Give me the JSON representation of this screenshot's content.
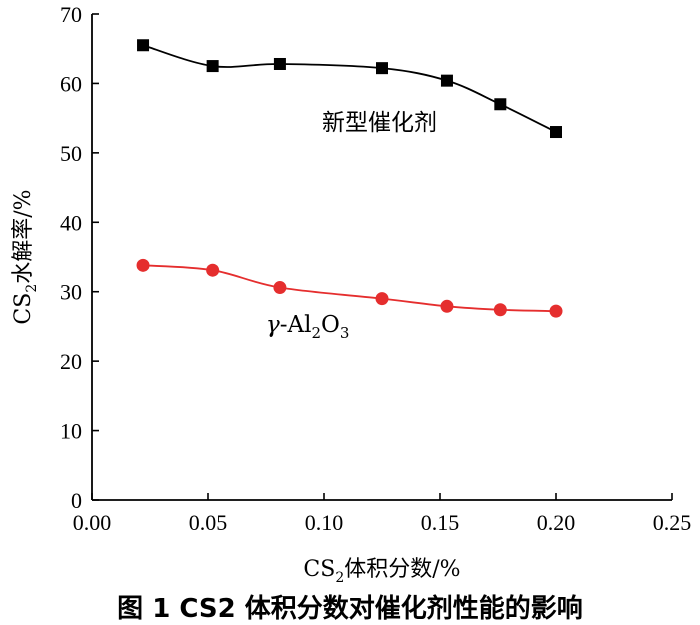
{
  "chart_data": {
    "type": "line",
    "title": "",
    "xlabel": {
      "main": "CS",
      "sub": "2",
      "rest": "体积分数/%"
    },
    "ylabel": {
      "main": "CS",
      "sub": "2",
      "rest": "水解率/%"
    },
    "xlim": [
      0.0,
      0.25
    ],
    "ylim": [
      0,
      70
    ],
    "x_ticks": [
      "0.00",
      "0.05",
      "0.10",
      "0.15",
      "0.20",
      "0.25"
    ],
    "y_ticks": [
      "0",
      "10",
      "20",
      "30",
      "40",
      "50",
      "60",
      "70"
    ],
    "grid": false,
    "x": [
      0.022,
      0.052,
      0.081,
      0.125,
      0.153,
      0.176,
      0.2
    ],
    "series": [
      {
        "name": "新型催化剂",
        "marker": "square",
        "color": "#000000",
        "line_color": "#000000",
        "values": [
          65.5,
          62.5,
          62.8,
          62.2,
          60.4,
          57.0,
          53.0
        ]
      },
      {
        "name": "γ-Al2O3",
        "label_parts": {
          "gamma": "γ",
          "dash": "-Al",
          "s1": "2",
          "o": "O",
          "s2": "3"
        },
        "marker": "circle",
        "color": "#e52e2e",
        "line_color": "#e52e2e",
        "values": [
          33.8,
          33.1,
          30.6,
          29.0,
          27.9,
          27.4,
          27.2
        ]
      }
    ]
  },
  "caption": "图 1 CS2 体积分数对催化剂性能的影响"
}
